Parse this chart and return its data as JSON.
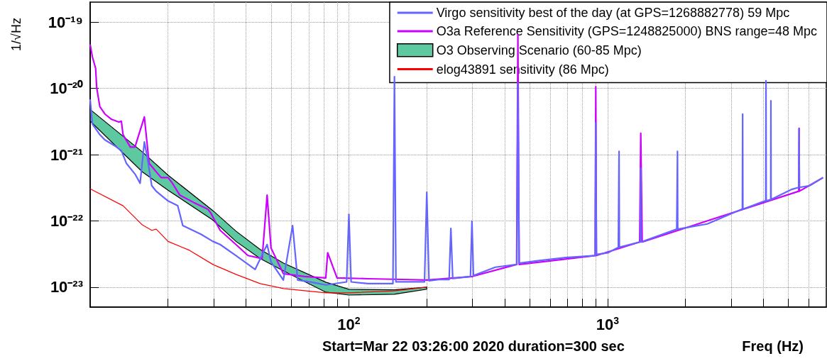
{
  "chart_data": {
    "type": "line",
    "xlabel": "Freq (Hz)",
    "ylabel": "1/√Hz",
    "annotations": [
      "Start=Mar 22 03:26:00 2020 duration=300 sec"
    ],
    "log": "xy",
    "grid": true,
    "legend": "top right",
    "xlim": [
      10,
      7000
    ],
    "ylim": [
      5e-24,
      2e-19
    ],
    "xticks": [
      {
        "value": 20,
        "label": null
      },
      {
        "value": 30,
        "label": null
      },
      {
        "value": 40,
        "label": null
      },
      {
        "value": 50,
        "label": null
      },
      {
        "value": 60,
        "label": null
      },
      {
        "value": 70,
        "label": null
      },
      {
        "value": 80,
        "label": null
      },
      {
        "value": 90,
        "label": null
      },
      {
        "value": 100,
        "label": "10$^{2}$"
      },
      {
        "value": 200,
        "label": null
      },
      {
        "value": 300,
        "label": null
      },
      {
        "value": 400,
        "label": null
      },
      {
        "value": 500,
        "label": null
      },
      {
        "value": 600,
        "label": null
      },
      {
        "value": 700,
        "label": null
      },
      {
        "value": 800,
        "label": null
      },
      {
        "value": 900,
        "label": null
      },
      {
        "value": 1000,
        "label": "10$^{3}$"
      },
      {
        "value": 2000,
        "label": null
      },
      {
        "value": 3000,
        "label": null
      },
      {
        "value": 4000,
        "label": null
      },
      {
        "value": 5000,
        "label": null
      },
      {
        "value": 6000,
        "label": null
      }
    ],
    "yticks": [
      {
        "value": 1e-23,
        "label": "10⁻²³"
      },
      {
        "value": 1e-22,
        "label": "10⁻²²"
      },
      {
        "value": 1e-21,
        "label": "10⁻²¹"
      },
      {
        "value": 1e-20,
        "label": "10⁻²⁰"
      },
      {
        "value": 1e-19,
        "label": "10⁻¹⁹"
      }
    ],
    "series": [
      {
        "name": "Virgo sensitivity best of the day (at GPS=1268882778) 59 Mpc",
        "color": "#6464ff",
        "x": [
          10,
          10.2,
          10.9,
          11.4,
          12.4,
          13.2,
          13.8,
          14.9,
          15.6,
          16.2,
          16.6,
          17.3,
          18.0,
          20,
          21.8,
          22.8,
          26.8,
          29.8,
          31.8,
          36.6,
          43.4,
          48.3,
          50,
          55.8,
          60.6,
          63.4,
          71.8,
          81.4,
          98,
          100,
          102,
          118.7,
          148,
          150,
          152,
          173,
          196,
          200,
          204,
          222.6,
          244,
          247.8,
          252,
          295,
          299,
          303,
          368,
          446,
          450,
          455,
          537,
          690,
          895,
          900,
          905,
          1003,
          1100,
          1104,
          1107,
          1110,
          1330,
          1340,
          1343,
          1346,
          1850,
          1858,
          1862,
          1866,
          2427,
          3300,
          3318,
          3325,
          3332,
          4050,
          4085,
          4093,
          4100,
          4270,
          4276,
          4282,
          5164,
          5480,
          5495,
          5510,
          6039,
          6800
        ],
        "values": [
          6.8e-21,
          2.9e-21,
          2e-21,
          1.67e-21,
          1.37e-21,
          1.15e-21,
          7.4e-22,
          5.1e-22,
          3.7e-22,
          1.55e-21,
          9.5e-22,
          3.4e-22,
          2.8e-22,
          2e-22,
          1.7e-22,
          8.5e-23,
          6.3e-23,
          4.9e-23,
          4.4e-23,
          3e-23,
          1.85e-23,
          4.4e-23,
          2.4e-23,
          1.28e-23,
          8.5e-23,
          1.28e-23,
          1.19e-23,
          1.08e-23,
          1.2e-23,
          1.26e-22,
          1.2e-23,
          1.13e-23,
          1.13e-23,
          1.5e-20,
          1.2e-23,
          1.2e-23,
          1.2e-23,
          2.7e-22,
          1.25e-23,
          1.3e-23,
          1.3e-23,
          7.7e-23,
          1.35e-23,
          1.45e-23,
          9.9e-23,
          1.5e-23,
          2e-23,
          2.2e-23,
          1.2e-20,
          2.3e-23,
          2.5e-23,
          2.8e-23,
          3e-23,
          3e-21,
          3.1e-23,
          3.3e-23,
          4e-23,
          4e-23,
          1.12e-21,
          4e-23,
          4.8e-23,
          4.8e-23,
          6.2e-22,
          4.8e-23,
          7.5e-23,
          7.5e-23,
          1.12e-21,
          7.5e-23,
          9e-23,
          1.5e-22,
          1.5e-22,
          4.1e-21,
          1.5e-22,
          2e-22,
          2e-22,
          1.3e-20,
          2e-22,
          2.1e-22,
          6.5e-21,
          2.1e-22,
          3e-22,
          3.2e-22,
          2.4e-21,
          3.2e-22,
          3.4e-22,
          4.5e-22
        ]
      },
      {
        "name": "O3a Reference Sensitivity (GPS=1248825000) BNS range=48 Mpc",
        "color": "#cc00ff",
        "x": [
          10,
          10.2,
          10.5,
          10.6,
          10.9,
          11.4,
          12.1,
          12.9,
          13.2,
          13.4,
          14.3,
          14.9,
          16.2,
          16.9,
          18.8,
          20,
          20.8,
          22.2,
          25.1,
          28.5,
          29.2,
          31.8,
          36.6,
          40.7,
          46.2,
          48.3,
          50,
          55.8,
          67.4,
          81.4,
          82.8,
          90,
          118.7,
          173,
          200,
          300,
          445,
          450,
          455,
          895,
          900,
          905,
          1330,
          1343,
          1360,
          5480,
          5495,
          5510,
          6800
        ],
        "values": [
          4.6e-20,
          3e-20,
          2e-20,
          1.02e-20,
          5.3e-21,
          4.1e-21,
          3.4e-21,
          3.1e-21,
          3.2e-21,
          2e-21,
          1.3e-21,
          1.3e-21,
          3.7e-21,
          7.4e-22,
          4.5e-22,
          4.5e-22,
          3.7e-22,
          2.45e-22,
          1.9e-22,
          1.5e-22,
          1.33e-22,
          7.2e-23,
          4.4e-23,
          3e-23,
          2.7e-23,
          2.45e-22,
          3.9e-23,
          1.6e-23,
          1.45e-23,
          1.38e-23,
          3.3e-23,
          1.38e-23,
          1.34e-23,
          1.3e-23,
          1.28e-23,
          1.45e-23,
          2.2e-23,
          6.5e-20,
          2.2e-23,
          3e-23,
          1.06e-20,
          3e-23,
          4.8e-23,
          2.1e-21,
          4.8e-23,
          2.8e-22,
          2.5e-21,
          2.8e-22,
          4.5e-22
        ]
      },
      {
        "type": "area",
        "name": "O3 Observing Scenario (60-85 Mpc)",
        "color": "#5ec8a0",
        "x": [
          10,
          15.9,
          20,
          29.8,
          36.6,
          45.4,
          55.9,
          81.4,
          100,
          150,
          200
        ],
        "values": [
          null,
          null,
          null,
          null,
          null,
          null,
          null,
          null,
          null,
          null,
          null
        ],
        "upper": [
          4.8e-21,
          1.1e-21,
          4.9e-22,
          1.43e-22,
          7e-23,
          3.7e-23,
          2.3e-23,
          1.19e-23,
          9.3e-24,
          9.1e-24,
          1e-23
        ],
        "lower": [
          3.2e-21,
          5.5e-22,
          2.9e-22,
          1.03e-22,
          4.9e-23,
          2.7e-23,
          1.76e-23,
          8.4e-24,
          7.6e-24,
          7.8e-24,
          9.3e-24
        ]
      },
      {
        "name": "elog43891 sensitivity (86 Mpc)",
        "color": "#ff0000",
        "x": [
          10,
          13.4,
          15.9,
          17.3,
          18.0,
          18.8,
          20,
          24.2,
          29.8,
          36.6,
          45.4,
          55.9,
          81.4,
          100,
          150,
          200
        ],
        "values": [
          3.05e-22,
          1.69e-22,
          8.7e-23,
          7.2e-23,
          7.5e-23,
          6.3e-23,
          4.9e-23,
          3.6e-23,
          2.2e-23,
          1.56e-23,
          1.13e-23,
          9.5e-24,
          8.2e-24,
          8.2e-24,
          8.8e-24,
          1e-23
        ]
      }
    ]
  }
}
